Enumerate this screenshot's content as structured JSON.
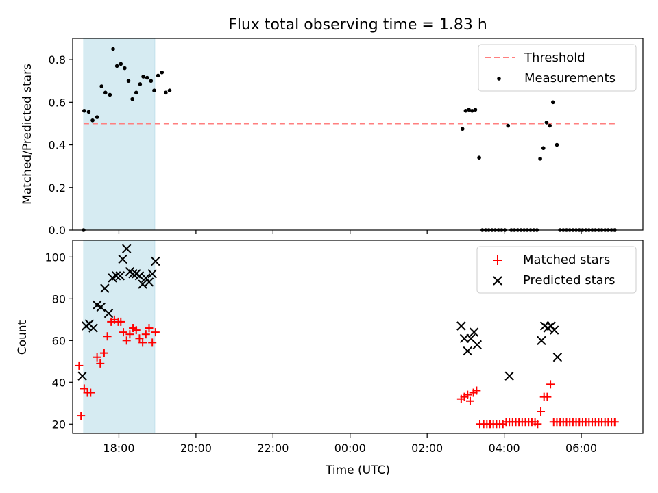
{
  "chart_data": [
    {
      "type": "scatter",
      "title": "Flux total observing time = 1.83 h",
      "xlabel": "",
      "ylabel": "Matched/Predicted stars",
      "xlim": [
        "16:48",
        "07:36"
      ],
      "ylim": [
        0,
        0.9
      ],
      "yticks": [
        "0.0",
        "0.2",
        "0.4",
        "0.6",
        "0.8"
      ],
      "xticks": [
        "18:00",
        "20:00",
        "22:00",
        "00:00",
        "02:00",
        "04:00",
        "06:00"
      ],
      "shaded_span": [
        "17:05",
        "18:56"
      ],
      "threshold": {
        "name": "Threshold",
        "value": 0.5,
        "x_range": [
          "17:05",
          "06:55"
        ],
        "color": "#ff7f7f"
      },
      "legend": {
        "position": "upper right",
        "entries": [
          "Threshold",
          "Measurements"
        ]
      },
      "series": [
        {
          "name": "Measurements",
          "marker": "dot",
          "color": "#000000",
          "points": [
            [
              "17:05",
              0.0
            ],
            [
              "17:06",
              0.56
            ],
            [
              "17:13",
              0.555
            ],
            [
              "17:19",
              0.515
            ],
            [
              "17:26",
              0.53
            ],
            [
              "17:33",
              0.675
            ],
            [
              "17:39",
              0.645
            ],
            [
              "17:46",
              0.635
            ],
            [
              "17:51",
              0.85
            ],
            [
              "17:57",
              0.77
            ],
            [
              "18:03",
              0.78
            ],
            [
              "18:09",
              0.76
            ],
            [
              "18:15",
              0.7
            ],
            [
              "18:21",
              0.615
            ],
            [
              "18:27",
              0.645
            ],
            [
              "18:33",
              0.685
            ],
            [
              "18:38",
              0.72
            ],
            [
              "18:44",
              0.715
            ],
            [
              "18:50",
              0.7
            ],
            [
              "18:55",
              0.655
            ],
            [
              "19:01",
              0.725
            ],
            [
              "19:07",
              0.74
            ],
            [
              "19:13",
              0.645
            ],
            [
              "19:19",
              0.655
            ],
            [
              "02:55",
              0.475
            ],
            [
              "03:00",
              0.56
            ],
            [
              "03:05",
              0.565
            ],
            [
              "03:10",
              0.56
            ],
            [
              "03:15",
              0.565
            ],
            [
              "03:21",
              0.34
            ],
            [
              "03:26",
              0.0
            ],
            [
              "03:31",
              0.0
            ],
            [
              "03:36",
              0.0
            ],
            [
              "03:41",
              0.0
            ],
            [
              "03:46",
              0.0
            ],
            [
              "03:51",
              0.0
            ],
            [
              "03:56",
              0.0
            ],
            [
              "04:01",
              0.0
            ],
            [
              "04:06",
              0.49
            ],
            [
              "04:11",
              0.0
            ],
            [
              "04:16",
              0.0
            ],
            [
              "04:21",
              0.0
            ],
            [
              "04:26",
              0.0
            ],
            [
              "04:31",
              0.0
            ],
            [
              "04:36",
              0.0
            ],
            [
              "04:41",
              0.0
            ],
            [
              "04:46",
              0.0
            ],
            [
              "04:51",
              0.0
            ],
            [
              "04:56",
              0.335
            ],
            [
              "05:01",
              0.385
            ],
            [
              "05:06",
              0.505
            ],
            [
              "05:11",
              0.49
            ],
            [
              "05:16",
              0.6
            ],
            [
              "05:22",
              0.4
            ],
            [
              "05:27",
              0.0
            ],
            [
              "05:32",
              0.0
            ],
            [
              "05:37",
              0.0
            ],
            [
              "05:42",
              0.0
            ],
            [
              "05:47",
              0.0
            ],
            [
              "05:52",
              0.0
            ],
            [
              "05:57",
              0.0
            ],
            [
              "06:02",
              0.0
            ],
            [
              "06:07",
              0.0
            ],
            [
              "06:12",
              0.0
            ],
            [
              "06:17",
              0.0
            ],
            [
              "06:22",
              0.0
            ],
            [
              "06:27",
              0.0
            ],
            [
              "06:32",
              0.0
            ],
            [
              "06:37",
              0.0
            ],
            [
              "06:42",
              0.0
            ],
            [
              "06:47",
              0.0
            ],
            [
              "06:52",
              0.0
            ]
          ]
        }
      ]
    },
    {
      "type": "scatter",
      "title": "",
      "xlabel": "Time (UTC)",
      "ylabel": "Count",
      "xlim": [
        "16:48",
        "07:36"
      ],
      "ylim": [
        15.5,
        108
      ],
      "yticks": [
        "20",
        "40",
        "60",
        "80",
        "100"
      ],
      "xticks": [
        "18:00",
        "20:00",
        "22:00",
        "00:00",
        "02:00",
        "04:00",
        "06:00"
      ],
      "shaded_span": [
        "17:05",
        "18:56"
      ],
      "legend": {
        "position": "upper right",
        "entries": [
          "Matched stars",
          "Predicted stars"
        ]
      },
      "series": [
        {
          "name": "Matched stars",
          "marker": "plus",
          "color": "#ff0000",
          "points": [
            [
              "16:58",
              48
            ],
            [
              "17:01",
              24
            ],
            [
              "17:06",
              37
            ],
            [
              "17:11",
              35
            ],
            [
              "17:16",
              35
            ],
            [
              "17:26",
              52
            ],
            [
              "17:31",
              49
            ],
            [
              "17:37",
              54
            ],
            [
              "17:42",
              62
            ],
            [
              "17:48",
              69
            ],
            [
              "17:53",
              70
            ],
            [
              "17:59",
              69
            ],
            [
              "18:03",
              69
            ],
            [
              "18:07",
              64
            ],
            [
              "18:12",
              60
            ],
            [
              "18:17",
              63
            ],
            [
              "18:22",
              66
            ],
            [
              "18:27",
              65
            ],
            [
              "18:32",
              61
            ],
            [
              "18:37",
              59
            ],
            [
              "18:42",
              63
            ],
            [
              "18:47",
              66
            ],
            [
              "18:52",
              59
            ],
            [
              "18:57",
              64
            ],
            [
              "02:53",
              32
            ],
            [
              "02:58",
              33
            ],
            [
              "03:03",
              34
            ],
            [
              "03:07",
              31
            ],
            [
              "03:12",
              35
            ],
            [
              "03:17",
              36
            ],
            [
              "03:22",
              20
            ],
            [
              "03:28",
              20
            ],
            [
              "03:33",
              20
            ],
            [
              "03:38",
              20
            ],
            [
              "03:43",
              20
            ],
            [
              "03:48",
              20
            ],
            [
              "03:53",
              20
            ],
            [
              "03:58",
              20
            ],
            [
              "04:03",
              21
            ],
            [
              "04:08",
              21
            ],
            [
              "04:13",
              21
            ],
            [
              "04:18",
              21
            ],
            [
              "04:23",
              21
            ],
            [
              "04:28",
              21
            ],
            [
              "04:33",
              21
            ],
            [
              "04:38",
              21
            ],
            [
              "04:43",
              21
            ],
            [
              "04:48",
              21
            ],
            [
              "04:52",
              20
            ],
            [
              "04:57",
              26
            ],
            [
              "05:02",
              33
            ],
            [
              "05:07",
              33
            ],
            [
              "05:12",
              39
            ],
            [
              "05:17",
              21
            ],
            [
              "05:22",
              21
            ],
            [
              "05:27",
              21
            ],
            [
              "05:32",
              21
            ],
            [
              "05:37",
              21
            ],
            [
              "05:42",
              21
            ],
            [
              "05:47",
              21
            ],
            [
              "05:52",
              21
            ],
            [
              "05:57",
              21
            ],
            [
              "06:02",
              21
            ],
            [
              "06:07",
              21
            ],
            [
              "06:12",
              21
            ],
            [
              "06:17",
              21
            ],
            [
              "06:22",
              21
            ],
            [
              "06:27",
              21
            ],
            [
              "06:32",
              21
            ],
            [
              "06:37",
              21
            ],
            [
              "06:42",
              21
            ],
            [
              "06:47",
              21
            ],
            [
              "06:52",
              21
            ]
          ]
        },
        {
          "name": "Predicted stars",
          "marker": "x",
          "color": "#000000",
          "points": [
            [
              "17:03",
              43
            ],
            [
              "17:09",
              67
            ],
            [
              "17:14",
              68
            ],
            [
              "17:20",
              66
            ],
            [
              "17:26",
              77
            ],
            [
              "17:32",
              76
            ],
            [
              "17:38",
              85
            ],
            [
              "17:44",
              73
            ],
            [
              "17:50",
              90
            ],
            [
              "17:56",
              91
            ],
            [
              "18:02",
              91
            ],
            [
              "18:06",
              99
            ],
            [
              "18:12",
              104
            ],
            [
              "18:17",
              93
            ],
            [
              "18:22",
              92
            ],
            [
              "18:27",
              92
            ],
            [
              "18:32",
              91
            ],
            [
              "18:37",
              87
            ],
            [
              "18:42",
              90
            ],
            [
              "18:47",
              88
            ],
            [
              "18:52",
              92
            ],
            [
              "18:57",
              98
            ],
            [
              "02:53",
              67
            ],
            [
              "02:58",
              61
            ],
            [
              "03:03",
              55
            ],
            [
              "03:08",
              61
            ],
            [
              "03:13",
              64
            ],
            [
              "03:18",
              58
            ],
            [
              "04:08",
              43
            ],
            [
              "04:58",
              60
            ],
            [
              "05:03",
              67
            ],
            [
              "05:08",
              66
            ],
            [
              "05:13",
              67
            ],
            [
              "05:18",
              65
            ],
            [
              "05:23",
              52
            ]
          ]
        }
      ]
    }
  ]
}
